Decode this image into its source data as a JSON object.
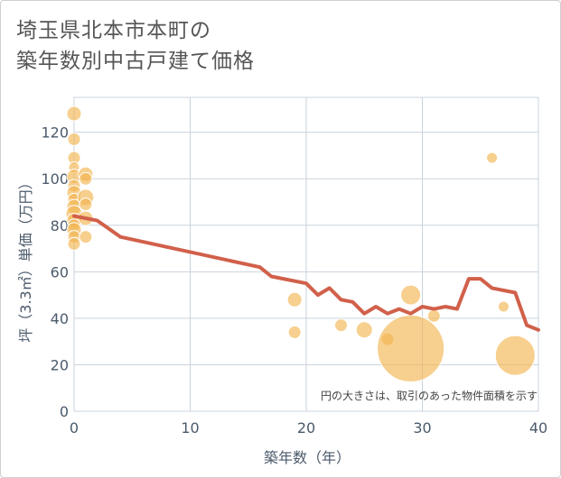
{
  "title_line1": "埼玉県北本市本町の",
  "title_line2": "築年数別中古戸建て価格",
  "chart_data": {
    "type": "scatter",
    "xlabel": "築年数（年）",
    "ylabel": "坪（3.3㎡）単価（万円）",
    "xlim": [
      0,
      40
    ],
    "ylim": [
      0,
      135
    ],
    "xticks": [
      0,
      10,
      20,
      30,
      40
    ],
    "yticks": [
      0,
      20,
      40,
      60,
      80,
      100,
      120
    ],
    "grid": true,
    "note": "円の大きさは、取引のあった物件面積を示す",
    "colors": {
      "bubble": "#f2b552",
      "line": "#d1604a",
      "grid": "#c9d3dc"
    },
    "bubbles": [
      {
        "x": 0,
        "y": 128,
        "size": 8
      },
      {
        "x": 0,
        "y": 117,
        "size": 7
      },
      {
        "x": 0,
        "y": 109,
        "size": 7
      },
      {
        "x": 0,
        "y": 105,
        "size": 6
      },
      {
        "x": 0,
        "y": 101,
        "size": 8
      },
      {
        "x": 0,
        "y": 97,
        "size": 7
      },
      {
        "x": 0,
        "y": 94,
        "size": 8
      },
      {
        "x": 0,
        "y": 91,
        "size": 7
      },
      {
        "x": 0,
        "y": 88,
        "size": 8
      },
      {
        "x": 0,
        "y": 85,
        "size": 9
      },
      {
        "x": 0,
        "y": 82,
        "size": 8
      },
      {
        "x": 0,
        "y": 80,
        "size": 7
      },
      {
        "x": 0,
        "y": 78,
        "size": 8
      },
      {
        "x": 0,
        "y": 75,
        "size": 7
      },
      {
        "x": 0,
        "y": 72,
        "size": 7
      },
      {
        "x": 1,
        "y": 102,
        "size": 8
      },
      {
        "x": 1,
        "y": 100,
        "size": 7
      },
      {
        "x": 1,
        "y": 92,
        "size": 9
      },
      {
        "x": 1,
        "y": 89,
        "size": 7
      },
      {
        "x": 1,
        "y": 83,
        "size": 8
      },
      {
        "x": 1,
        "y": 75,
        "size": 7
      },
      {
        "x": 19,
        "y": 48,
        "size": 8
      },
      {
        "x": 19,
        "y": 34,
        "size": 7
      },
      {
        "x": 23,
        "y": 37,
        "size": 7
      },
      {
        "x": 25,
        "y": 35,
        "size": 9
      },
      {
        "x": 27,
        "y": 31,
        "size": 7
      },
      {
        "x": 29,
        "y": 50,
        "size": 11
      },
      {
        "x": 29,
        "y": 27,
        "size": 37
      },
      {
        "x": 31,
        "y": 41,
        "size": 7
      },
      {
        "x": 36,
        "y": 109,
        "size": 6
      },
      {
        "x": 37,
        "y": 45,
        "size": 6
      },
      {
        "x": 38,
        "y": 24,
        "size": 22
      }
    ],
    "line": {
      "x": [
        0,
        1,
        2,
        4,
        16,
        17,
        20,
        21,
        22,
        23,
        24,
        25,
        26,
        27,
        28,
        29,
        30,
        31,
        32,
        33,
        34,
        35,
        36,
        38,
        39,
        40
      ],
      "y": [
        84,
        83,
        82,
        75,
        62,
        58,
        55,
        50,
        53,
        48,
        47,
        42,
        45,
        42,
        44,
        42,
        45,
        44,
        45,
        44,
        57,
        57,
        53,
        51,
        37,
        35
      ]
    }
  }
}
